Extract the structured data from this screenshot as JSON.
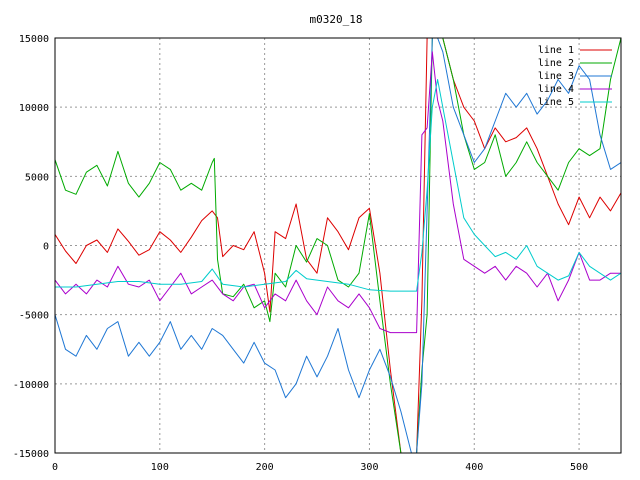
{
  "chart_data": {
    "type": "line",
    "title": "m0320_18",
    "xlabel": "",
    "ylabel": "",
    "xlim": [
      0,
      540
    ],
    "ylim": [
      -15000,
      15000
    ],
    "x_ticks": [
      0,
      100,
      200,
      300,
      400,
      500
    ],
    "y_ticks": [
      -15000,
      -10000,
      -5000,
      0,
      5000,
      10000,
      15000
    ],
    "grid": true,
    "legend_position": "top-right",
    "series": [
      {
        "name": "line 1",
        "color": "#dd0000",
        "x": [
          0,
          10,
          20,
          30,
          40,
          50,
          60,
          70,
          80,
          90,
          100,
          110,
          120,
          130,
          140,
          150,
          155,
          160,
          170,
          180,
          190,
          200,
          205,
          210,
          220,
          230,
          240,
          250,
          260,
          270,
          280,
          290,
          300,
          310,
          320,
          330,
          340,
          345,
          350,
          355,
          360,
          365,
          370,
          380,
          390,
          400,
          410,
          420,
          430,
          440,
          450,
          460,
          470,
          480,
          490,
          500,
          510,
          520,
          530,
          540
        ],
        "values": [
          800,
          -400,
          -1300,
          0,
          400,
          -500,
          1200,
          300,
          -700,
          -300,
          1000,
          400,
          -500,
          600,
          1800,
          2500,
          2000,
          -800,
          0,
          -300,
          1000,
          -2000,
          -4800,
          1000,
          500,
          3000,
          -1000,
          -2000,
          2000,
          1000,
          -300,
          2000,
          2700,
          -2000,
          -9000,
          -15000,
          -15000,
          -15000,
          -4000,
          15000,
          15000,
          15000,
          15000,
          12000,
          10000,
          9000,
          7000,
          8500,
          7500,
          7800,
          8500,
          7000,
          5000,
          3000,
          1500,
          3500,
          2000,
          3500,
          2500,
          3800
        ]
      },
      {
        "name": "line 2",
        "color": "#00aa00",
        "x": [
          0,
          10,
          20,
          30,
          40,
          50,
          60,
          70,
          80,
          90,
          100,
          110,
          120,
          130,
          140,
          150,
          152,
          155,
          160,
          170,
          180,
          190,
          200,
          205,
          210,
          220,
          230,
          240,
          250,
          260,
          270,
          280,
          290,
          300,
          310,
          320,
          330,
          340,
          345,
          350,
          355,
          360,
          365,
          370,
          380,
          390,
          400,
          410,
          420,
          430,
          440,
          450,
          460,
          470,
          480,
          490,
          500,
          510,
          520,
          530,
          540
        ],
        "values": [
          6200,
          4000,
          3700,
          5300,
          5800,
          4300,
          6800,
          4500,
          3500,
          4500,
          6000,
          5500,
          4000,
          4500,
          4000,
          6000,
          6300,
          -1000,
          -3500,
          -3700,
          -2800,
          -4500,
          -4000,
          -5500,
          -2000,
          -3000,
          0,
          -1200,
          500,
          0,
          -2500,
          -3000,
          -2000,
          2300,
          -4000,
          -10000,
          -15000,
          -15000,
          -15000,
          -9000,
          -5000,
          15000,
          15000,
          15000,
          12000,
          8000,
          5500,
          6000,
          8000,
          5000,
          6000,
          7500,
          6000,
          5000,
          4000,
          6000,
          7000,
          6500,
          7000,
          12000,
          15000
        ]
      },
      {
        "name": "line 3",
        "color": "#1f77d4",
        "x": [
          0,
          10,
          20,
          30,
          40,
          50,
          60,
          70,
          80,
          90,
          100,
          110,
          120,
          130,
          140,
          150,
          160,
          170,
          180,
          190,
          200,
          210,
          220,
          230,
          240,
          250,
          260,
          270,
          280,
          290,
          300,
          310,
          320,
          330,
          340,
          345,
          350,
          355,
          360,
          365,
          370,
          380,
          390,
          400,
          410,
          420,
          430,
          440,
          450,
          460,
          470,
          480,
          490,
          500,
          510,
          520,
          530,
          540
        ],
        "values": [
          -5000,
          -7500,
          -8000,
          -6500,
          -7500,
          -6000,
          -5500,
          -8000,
          -7000,
          -8000,
          -7000,
          -5500,
          -7500,
          -6500,
          -7500,
          -6000,
          -6500,
          -7500,
          -8500,
          -7000,
          -8500,
          -9000,
          -11000,
          -10000,
          -8000,
          -9500,
          -8000,
          -6000,
          -9000,
          -11000,
          -9000,
          -7500,
          -9500,
          -12000,
          -15000,
          -15000,
          -10000,
          2500,
          15000,
          15000,
          14000,
          10000,
          8000,
          6000,
          7000,
          9000,
          11000,
          10000,
          11000,
          9500,
          10500,
          12000,
          11000,
          13000,
          12000,
          8000,
          5500,
          6000
        ]
      },
      {
        "name": "line 4",
        "color": "#aa00cc",
        "x": [
          0,
          10,
          20,
          30,
          40,
          50,
          60,
          70,
          80,
          90,
          100,
          110,
          120,
          130,
          140,
          150,
          160,
          170,
          180,
          190,
          200,
          210,
          220,
          230,
          240,
          250,
          260,
          270,
          280,
          290,
          300,
          310,
          320,
          330,
          340,
          345,
          350,
          355,
          360,
          365,
          370,
          380,
          390,
          400,
          410,
          420,
          430,
          440,
          450,
          460,
          470,
          480,
          490,
          500,
          510,
          520,
          530,
          540
        ],
        "values": [
          -2500,
          -3500,
          -2800,
          -3500,
          -2500,
          -3000,
          -1500,
          -2800,
          -3000,
          -2500,
          -4000,
          -3000,
          -2000,
          -3500,
          -3000,
          -2500,
          -3500,
          -4000,
          -3000,
          -2800,
          -4500,
          -3500,
          -4000,
          -2500,
          -4000,
          -5000,
          -3000,
          -4000,
          -4500,
          -3500,
          -4500,
          -6000,
          -6300,
          -6300,
          -6300,
          -6300,
          8000,
          8500,
          14000,
          10500,
          9000,
          3000,
          -1000,
          -1500,
          -2000,
          -1500,
          -2500,
          -1500,
          -2000,
          -3000,
          -2000,
          -4000,
          -2500,
          -500,
          -2500,
          -2500,
          -2000,
          -2000
        ]
      },
      {
        "name": "line 5",
        "color": "#00cccc",
        "x": [
          0,
          20,
          40,
          60,
          80,
          100,
          120,
          140,
          150,
          160,
          180,
          200,
          220,
          230,
          240,
          260,
          280,
          300,
          320,
          340,
          345,
          350,
          355,
          360,
          365,
          370,
          380,
          390,
          400,
          410,
          420,
          430,
          440,
          450,
          460,
          470,
          480,
          490,
          500,
          510,
          520,
          530,
          540
        ],
        "values": [
          -3000,
          -3000,
          -2800,
          -2600,
          -2600,
          -2800,
          -2800,
          -2600,
          -1700,
          -2800,
          -3000,
          -2800,
          -2600,
          -1800,
          -2400,
          -2600,
          -2800,
          -3200,
          -3300,
          -3300,
          -3300,
          -500,
          4000,
          10000,
          12000,
          10000,
          6000,
          2000,
          800,
          0,
          -800,
          -500,
          -1000,
          0,
          -1500,
          -2000,
          -2500,
          -2200,
          -500,
          -1500,
          -2000,
          -2500,
          -2000
        ]
      }
    ]
  }
}
